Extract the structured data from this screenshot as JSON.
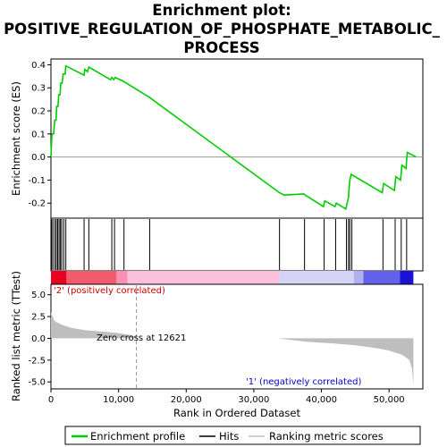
{
  "title_lines": [
    "Enrichment plot:",
    "POSITIVE_REGULATION_OF_PHOSPHATE_METABOLIC_",
    "PROCESS"
  ],
  "labels": {
    "es_ylabel": "Enrichment score (ES)",
    "metric_ylabel": "Ranked list metric (TTest)",
    "xlabel": "Rank in Ordered Dataset",
    "zero_cross": "Zero cross at 12621",
    "pos_label": "'2' (positively correlated)",
    "neg_label": "'1' (negatively correlated)"
  },
  "legend": {
    "items": [
      {
        "label": "Enrichment profile",
        "color": "#00cc00"
      },
      {
        "label": "Hits",
        "color": "#000000"
      },
      {
        "label": "Ranking metric scores",
        "color": "#c0c0c0"
      }
    ]
  },
  "colors": {
    "profile": "#00cc00",
    "hits": "#000000",
    "metric": "#bebebe",
    "zero_line": "#999999"
  },
  "chart_data": {
    "type": "line",
    "x_range": [
      0,
      55000
    ],
    "x_ticks": [
      0,
      10000,
      20000,
      30000,
      40000,
      50000
    ],
    "x_tick_labels": [
      "0",
      "10,000",
      "20,000",
      "30,000",
      "40,000",
      "50,000"
    ],
    "zero_cross": 12621,
    "es_panel": {
      "ylim": [
        -0.265,
        0.425
      ],
      "y_ticks": [
        -0.2,
        -0.1,
        0.0,
        0.1,
        0.2,
        0.3,
        0.4
      ],
      "y_tick_labels": [
        "-0.2",
        "-0.1",
        "0.0",
        "0.1",
        "0.2",
        "0.3",
        "0.4"
      ],
      "profile": [
        [
          0,
          0.0
        ],
        [
          150,
          0.1
        ],
        [
          400,
          0.1
        ],
        [
          550,
          0.16
        ],
        [
          750,
          0.16
        ],
        [
          850,
          0.22
        ],
        [
          1050,
          0.22
        ],
        [
          1150,
          0.27
        ],
        [
          1350,
          0.27
        ],
        [
          1450,
          0.32
        ],
        [
          1650,
          0.32
        ],
        [
          1800,
          0.36
        ],
        [
          2100,
          0.36
        ],
        [
          2200,
          0.395
        ],
        [
          4900,
          0.355
        ],
        [
          5000,
          0.38
        ],
        [
          5400,
          0.37
        ],
        [
          5600,
          0.39
        ],
        [
          8800,
          0.335
        ],
        [
          9000,
          0.345
        ],
        [
          9300,
          0.335
        ],
        [
          9500,
          0.345
        ],
        [
          10600,
          0.33
        ],
        [
          10900,
          0.325
        ],
        [
          14500,
          0.26
        ],
        [
          33800,
          -0.155
        ],
        [
          34500,
          -0.165
        ],
        [
          37400,
          -0.16
        ],
        [
          37600,
          -0.165
        ],
        [
          40300,
          -0.215
        ],
        [
          40500,
          -0.19
        ],
        [
          42000,
          -0.215
        ],
        [
          42200,
          -0.2
        ],
        [
          43600,
          -0.225
        ],
        [
          43800,
          -0.2
        ],
        [
          44000,
          -0.175
        ],
        [
          44100,
          -0.13
        ],
        [
          44200,
          -0.1
        ],
        [
          44400,
          -0.075
        ],
        [
          49000,
          -0.155
        ],
        [
          49200,
          -0.115
        ],
        [
          50800,
          -0.145
        ],
        [
          51000,
          -0.085
        ],
        [
          51700,
          -0.1
        ],
        [
          51900,
          -0.035
        ],
        [
          52500,
          -0.05
        ],
        [
          52700,
          0.02
        ],
        [
          54000,
          0.0
        ]
      ],
      "hits": [
        100,
        300,
        600,
        800,
        1000,
        1200,
        1400,
        1600,
        1900,
        2200,
        4900,
        5600,
        9000,
        9400,
        10800,
        14600,
        33800,
        37500,
        40400,
        42100,
        43700,
        44000,
        44200,
        44500,
        49100,
        50900,
        51800,
        52600
      ]
    },
    "metric_panel": {
      "ylim": [
        -5.8,
        6.2
      ],
      "y_ticks": [
        -5.0,
        -2.5,
        0.0,
        2.5,
        5.0
      ],
      "y_tick_labels": [
        "-5.0",
        "-2.5",
        "0.0",
        "2.5",
        "5.0"
      ],
      "curve": [
        [
          0,
          3.0
        ],
        [
          500,
          2.0
        ],
        [
          1500,
          1.6
        ],
        [
          3000,
          1.2
        ],
        [
          5000,
          0.95
        ],
        [
          8000,
          0.75
        ],
        [
          10000,
          0.6
        ],
        [
          12000,
          0.35
        ],
        [
          12621,
          0.0
        ],
        [
          33800,
          0.0
        ],
        [
          34000,
          -0.05
        ],
        [
          38000,
          -0.4
        ],
        [
          42000,
          -0.6
        ],
        [
          45000,
          -0.8
        ],
        [
          48000,
          -1.1
        ],
        [
          50000,
          -1.4
        ],
        [
          52000,
          -1.9
        ],
        [
          53000,
          -2.5
        ],
        [
          53400,
          -3.5
        ],
        [
          53600,
          -5.3
        ]
      ]
    },
    "color_bar": [
      {
        "from": 0,
        "to": 2300,
        "color": "#e8001e"
      },
      {
        "from": 2300,
        "to": 9700,
        "color": "#f25a6e"
      },
      {
        "from": 9700,
        "to": 11300,
        "color": "#f890b4"
      },
      {
        "from": 11300,
        "to": 33800,
        "color": "#fbc0dc"
      },
      {
        "from": 33800,
        "to": 44800,
        "color": "#d4d4f6"
      },
      {
        "from": 44800,
        "to": 46200,
        "color": "#b0b0f0"
      },
      {
        "from": 46200,
        "to": 51600,
        "color": "#6262ea"
      },
      {
        "from": 51600,
        "to": 53600,
        "color": "#1a10d6"
      }
    ]
  }
}
